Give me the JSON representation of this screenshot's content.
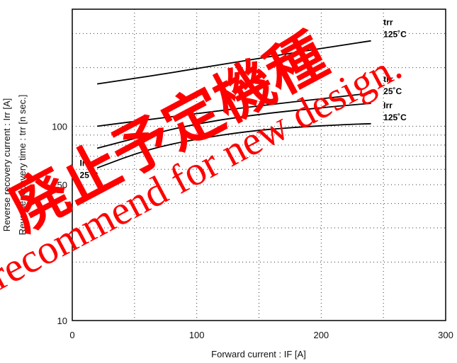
{
  "chart_data": {
    "type": "line",
    "xlabel": "Forward current  :  IF [A]",
    "ylabel_1": "Reverse  recovery  current  :  Irr [A]",
    "ylabel_2": "Reverse  recovery  time  :  trr [n sec.]",
    "xlim": [
      0,
      300
    ],
    "ylim": [
      10,
      400
    ],
    "yscale": "log",
    "grid": true,
    "x_ticks": [
      "0",
      "100",
      "200",
      "300"
    ],
    "y_ticks": [
      "10",
      "50",
      "100"
    ],
    "series": [
      {
        "x": [
          20,
          60,
          100,
          140,
          180,
          220,
          240
        ],
        "values": [
          165,
          180,
          198,
          218,
          240,
          263,
          275
        ]
      },
      {
        "x": [
          20,
          60,
          100,
          140,
          180,
          220,
          240
        ],
        "values": [
          100,
          108,
          116,
          125,
          134,
          143,
          148
        ]
      },
      {
        "x": [
          20,
          60,
          100,
          140,
          180,
          220,
          240
        ],
        "values": [
          77,
          90,
          103,
          113,
          121,
          128,
          131
        ]
      },
      {
        "x": [
          20,
          60,
          100,
          140,
          180,
          220,
          240
        ],
        "values": [
          61,
          76,
          86,
          94,
          99,
          102,
          103
        ]
      }
    ],
    "annotations": [
      {
        "line1": "trr",
        "line2": "125˚C",
        "x": 250,
        "y": 275
      },
      {
        "line1": "trr",
        "line2": "25˚C",
        "x": 250,
        "y": 140
      },
      {
        "line1": "Irr",
        "line2": "125˚C",
        "x": 250,
        "y": 103
      },
      {
        "line1": "Irr",
        "line2": "25˚C",
        "x": 6,
        "y": 52
      }
    ],
    "watermark_cjk": "廃止予定機種",
    "watermark_en": "Not recommend for new design."
  }
}
